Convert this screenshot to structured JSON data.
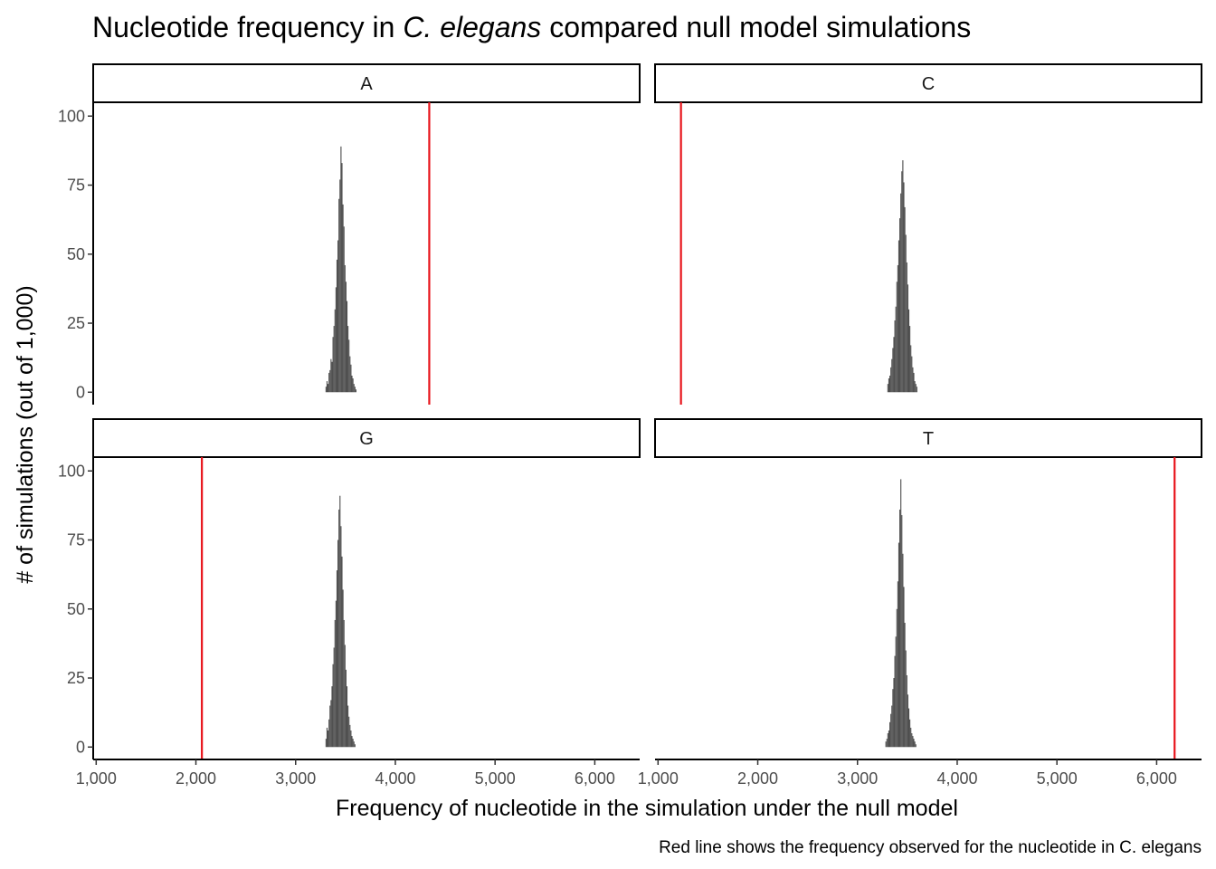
{
  "chart_data": {
    "type": "bar",
    "title": {
      "before": "Nucleotide frequency in ",
      "italic": "C. elegans",
      "after": " compared null model simulations"
    },
    "xlabel": "Frequency of nucleotide in the simulation under the null model",
    "ylabel": "# of simulations (out of 1,000)",
    "caption": "Red line shows the frequency observed for the nucleotide in C. elegans",
    "xlim": [
      970,
      6450
    ],
    "ylim": [
      -4.5,
      105
    ],
    "x_ticks": [
      1000,
      2000,
      3000,
      4000,
      5000,
      6000
    ],
    "x_tick_labels": [
      "1,000",
      "2,000",
      "3,000",
      "4,000",
      "5,000",
      "6,000"
    ],
    "y_ticks": [
      0,
      25,
      50,
      75,
      100
    ],
    "y_tick_labels": [
      "0",
      "25",
      "50",
      "75",
      "100"
    ],
    "bin_width": 10,
    "grid": false,
    "colors": {
      "histogram": "#4d4d4d",
      "observed_line": "#e8141b",
      "strip_fill": "#ffffff",
      "frame": "#000000"
    },
    "panels": [
      {
        "nucleotide": "A",
        "observed": 4340,
        "bins": [
          {
            "x": 3305,
            "count": 2
          },
          {
            "x": 3315,
            "count": 4
          },
          {
            "x": 3325,
            "count": 3
          },
          {
            "x": 3335,
            "count": 7
          },
          {
            "x": 3345,
            "count": 8
          },
          {
            "x": 3355,
            "count": 12
          },
          {
            "x": 3365,
            "count": 11
          },
          {
            "x": 3375,
            "count": 20
          },
          {
            "x": 3385,
            "count": 24
          },
          {
            "x": 3395,
            "count": 30
          },
          {
            "x": 3405,
            "count": 38
          },
          {
            "x": 3415,
            "count": 48
          },
          {
            "x": 3425,
            "count": 55
          },
          {
            "x": 3435,
            "count": 70
          },
          {
            "x": 3445,
            "count": 77
          },
          {
            "x": 3455,
            "count": 89
          },
          {
            "x": 3465,
            "count": 83
          },
          {
            "x": 3475,
            "count": 68
          },
          {
            "x": 3485,
            "count": 60
          },
          {
            "x": 3495,
            "count": 46
          },
          {
            "x": 3505,
            "count": 40
          },
          {
            "x": 3515,
            "count": 33
          },
          {
            "x": 3525,
            "count": 24
          },
          {
            "x": 3535,
            "count": 19
          },
          {
            "x": 3545,
            "count": 13
          },
          {
            "x": 3555,
            "count": 10
          },
          {
            "x": 3565,
            "count": 6
          },
          {
            "x": 3575,
            "count": 5
          },
          {
            "x": 3585,
            "count": 3
          },
          {
            "x": 3595,
            "count": 2
          },
          {
            "x": 3605,
            "count": 1
          }
        ]
      },
      {
        "nucleotide": "C",
        "observed": 1230,
        "bins": [
          {
            "x": 3305,
            "count": 3
          },
          {
            "x": 3315,
            "count": 5
          },
          {
            "x": 3325,
            "count": 6
          },
          {
            "x": 3335,
            "count": 9
          },
          {
            "x": 3345,
            "count": 12
          },
          {
            "x": 3355,
            "count": 16
          },
          {
            "x": 3365,
            "count": 20
          },
          {
            "x": 3375,
            "count": 26
          },
          {
            "x": 3385,
            "count": 31
          },
          {
            "x": 3395,
            "count": 40
          },
          {
            "x": 3405,
            "count": 46
          },
          {
            "x": 3415,
            "count": 55
          },
          {
            "x": 3425,
            "count": 63
          },
          {
            "x": 3435,
            "count": 72
          },
          {
            "x": 3445,
            "count": 80
          },
          {
            "x": 3455,
            "count": 84
          },
          {
            "x": 3465,
            "count": 76
          },
          {
            "x": 3475,
            "count": 67
          },
          {
            "x": 3485,
            "count": 57
          },
          {
            "x": 3495,
            "count": 47
          },
          {
            "x": 3505,
            "count": 39
          },
          {
            "x": 3515,
            "count": 30
          },
          {
            "x": 3525,
            "count": 24
          },
          {
            "x": 3535,
            "count": 17
          },
          {
            "x": 3545,
            "count": 13
          },
          {
            "x": 3555,
            "count": 9
          },
          {
            "x": 3565,
            "count": 7
          },
          {
            "x": 3575,
            "count": 4
          },
          {
            "x": 3585,
            "count": 3
          },
          {
            "x": 3595,
            "count": 2
          }
        ]
      },
      {
        "nucleotide": "G",
        "observed": 2060,
        "bins": [
          {
            "x": 3305,
            "count": 3
          },
          {
            "x": 3315,
            "count": 7
          },
          {
            "x": 3325,
            "count": 6
          },
          {
            "x": 3335,
            "count": 10
          },
          {
            "x": 3345,
            "count": 15
          },
          {
            "x": 3355,
            "count": 17
          },
          {
            "x": 3365,
            "count": 22
          },
          {
            "x": 3375,
            "count": 30
          },
          {
            "x": 3385,
            "count": 36
          },
          {
            "x": 3395,
            "count": 46
          },
          {
            "x": 3405,
            "count": 53
          },
          {
            "x": 3415,
            "count": 64
          },
          {
            "x": 3425,
            "count": 75
          },
          {
            "x": 3435,
            "count": 86
          },
          {
            "x": 3445,
            "count": 91
          },
          {
            "x": 3455,
            "count": 80
          },
          {
            "x": 3465,
            "count": 69
          },
          {
            "x": 3475,
            "count": 57
          },
          {
            "x": 3485,
            "count": 46
          },
          {
            "x": 3495,
            "count": 37
          },
          {
            "x": 3505,
            "count": 28
          },
          {
            "x": 3515,
            "count": 22
          },
          {
            "x": 3525,
            "count": 15
          },
          {
            "x": 3535,
            "count": 11
          },
          {
            "x": 3545,
            "count": 8
          },
          {
            "x": 3555,
            "count": 6
          },
          {
            "x": 3565,
            "count": 4
          },
          {
            "x": 3575,
            "count": 3
          },
          {
            "x": 3585,
            "count": 2
          },
          {
            "x": 3595,
            "count": 1
          }
        ]
      },
      {
        "nucleotide": "T",
        "observed": 6180,
        "bins": [
          {
            "x": 3285,
            "count": 2
          },
          {
            "x": 3295,
            "count": 3
          },
          {
            "x": 3305,
            "count": 5
          },
          {
            "x": 3315,
            "count": 6
          },
          {
            "x": 3325,
            "count": 9
          },
          {
            "x": 3335,
            "count": 12
          },
          {
            "x": 3345,
            "count": 15
          },
          {
            "x": 3355,
            "count": 21
          },
          {
            "x": 3365,
            "count": 25
          },
          {
            "x": 3375,
            "count": 33
          },
          {
            "x": 3385,
            "count": 40
          },
          {
            "x": 3395,
            "count": 50
          },
          {
            "x": 3405,
            "count": 60
          },
          {
            "x": 3415,
            "count": 74
          },
          {
            "x": 3425,
            "count": 86
          },
          {
            "x": 3435,
            "count": 97
          },
          {
            "x": 3445,
            "count": 84
          },
          {
            "x": 3455,
            "count": 70
          },
          {
            "x": 3465,
            "count": 58
          },
          {
            "x": 3475,
            "count": 45
          },
          {
            "x": 3485,
            "count": 35
          },
          {
            "x": 3495,
            "count": 26
          },
          {
            "x": 3505,
            "count": 19
          },
          {
            "x": 3515,
            "count": 14
          },
          {
            "x": 3525,
            "count": 10
          },
          {
            "x": 3535,
            "count": 7
          },
          {
            "x": 3545,
            "count": 5
          },
          {
            "x": 3555,
            "count": 4
          },
          {
            "x": 3565,
            "count": 3
          },
          {
            "x": 3575,
            "count": 2
          },
          {
            "x": 3585,
            "count": 1
          }
        ]
      }
    ]
  }
}
